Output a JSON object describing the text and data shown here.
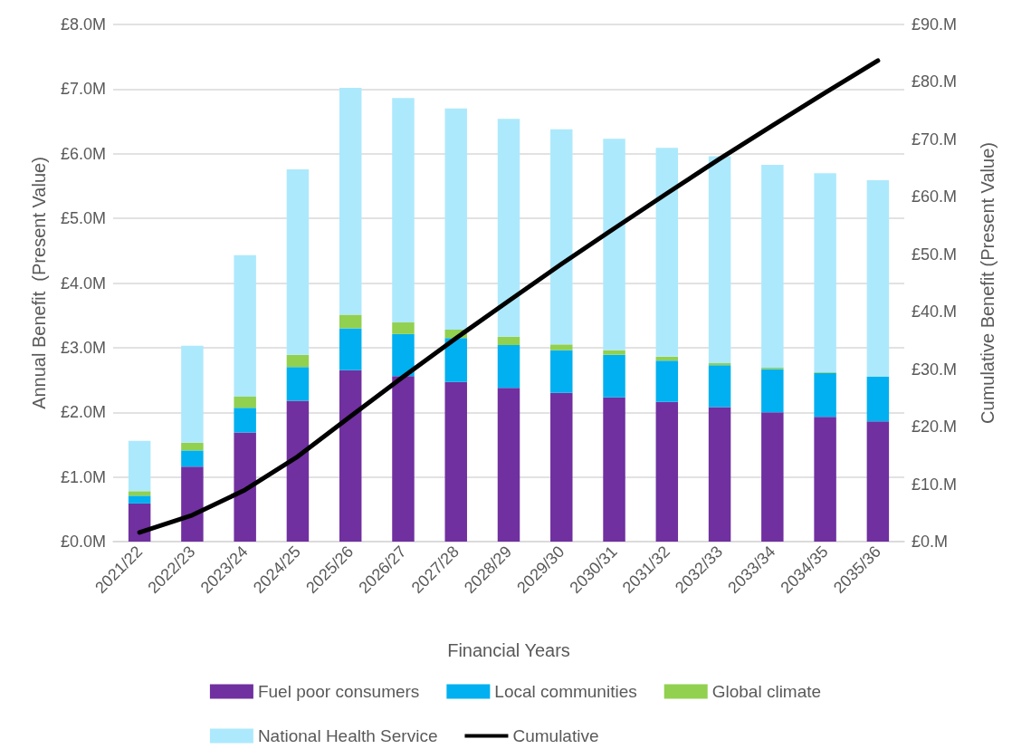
{
  "chart_data": {
    "type": "bar",
    "stacked": true,
    "xlabel": "Financial Years",
    "ylabel": "Annual Benefit  (Present Value)",
    "y2label": "Cumulative Benefit (Present Value)",
    "categories": [
      "2021/22",
      "2022/23",
      "2023/24",
      "2024/25",
      "2025/26",
      "2026/27",
      "2027/28",
      "2028/29",
      "2029/30",
      "2030/31",
      "2031/32",
      "2032/33",
      "2033/34",
      "2034/35",
      "2035/36"
    ],
    "series": [
      {
        "name": "Fuel poor consumers",
        "color": "#7030a0",
        "values": [
          0.59,
          1.16,
          1.69,
          2.18,
          2.65,
          2.56,
          2.47,
          2.38,
          2.3,
          2.23,
          2.16,
          2.08,
          2.0,
          1.93,
          1.86
        ]
      },
      {
        "name": "Local communities",
        "color": "#00b0f0",
        "values": [
          0.12,
          0.25,
          0.38,
          0.52,
          0.65,
          0.65,
          0.68,
          0.66,
          0.66,
          0.66,
          0.64,
          0.65,
          0.67,
          0.68,
          0.69
        ]
      },
      {
        "name": "Global climate",
        "color": "#92d050",
        "values": [
          0.07,
          0.12,
          0.17,
          0.19,
          0.21,
          0.18,
          0.13,
          0.13,
          0.09,
          0.07,
          0.06,
          0.03,
          0.02,
          0.01,
          null
        ]
      },
      {
        "name": "National Health Service",
        "color": "#ade9fc",
        "values": [
          0.78,
          1.5,
          2.19,
          2.87,
          3.51,
          3.47,
          3.42,
          3.37,
          3.33,
          3.27,
          3.23,
          3.2,
          3.14,
          3.08,
          3.04
        ]
      },
      {
        "name": "Cumulative",
        "type": "line",
        "axis": "y2",
        "color": "#000000",
        "marker": "none",
        "values": [
          1.6,
          4.6,
          9.0,
          14.8,
          21.8,
          28.7,
          35.4,
          41.9,
          48.3,
          54.5,
          60.6,
          66.6,
          72.4,
          78.1,
          83.7
        ]
      }
    ],
    "ylim": [
      0,
      8
    ],
    "yticks": [
      {
        "value": 0,
        "label": "£0.0M"
      },
      {
        "value": 1,
        "label": "£1.0M"
      },
      {
        "value": 2,
        "label": "£2.0M"
      },
      {
        "value": 3,
        "label": "£3.0M"
      },
      {
        "value": 4,
        "label": "£4.0M"
      },
      {
        "value": 5,
        "label": "£5.0M"
      },
      {
        "value": 6,
        "label": "£6.0M"
      },
      {
        "value": 7,
        "label": "£7.0M"
      },
      {
        "value": 8,
        "label": "£8.0M"
      }
    ],
    "y2lim": [
      0,
      90
    ],
    "y2ticks": [
      {
        "value": 0,
        "label": "£0.M"
      },
      {
        "value": 10,
        "label": "£10.M"
      },
      {
        "value": 20,
        "label": "£20.M"
      },
      {
        "value": 30,
        "label": "£30.M"
      },
      {
        "value": 40,
        "label": "£40.M"
      },
      {
        "value": 50,
        "label": "£50.M"
      },
      {
        "value": 60,
        "label": "£60.M"
      },
      {
        "value": 70,
        "label": "£70.M"
      },
      {
        "value": 80,
        "label": "£80.M"
      },
      {
        "value": 90,
        "label": "£90.M"
      }
    ],
    "grid": "y",
    "legend": "bottom"
  }
}
